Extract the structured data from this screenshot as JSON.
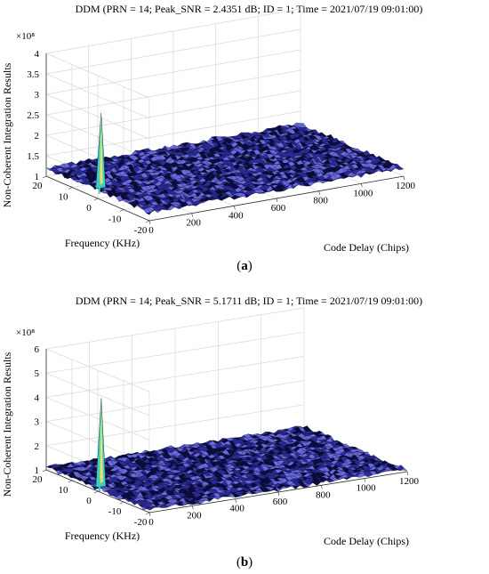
{
  "chart_data": [
    {
      "panel_label_text": "(a)",
      "panel_letter": "a",
      "type": "surface-3d",
      "title": "DDM (PRN = 14; Peak_SNR = 2.4351 dB; ID = 1; Time = 2021/07/19 09:01:00)",
      "xlabel": "Code Delay (Chips)",
      "ylabel": "Frequency (KHz)",
      "zlabel": "Non-Coherent Integration Results",
      "z_exponent": "×10⁸",
      "x_ticks": [
        "0",
        "200",
        "400",
        "600",
        "800",
        "1000",
        "1200"
      ],
      "y_ticks": [
        "20",
        "10",
        "0",
        "-10",
        "-20"
      ],
      "z_ticks": [
        "1",
        "1.5",
        "2",
        "2.5",
        "3",
        "3.5",
        "4"
      ],
      "xlim": [
        0,
        1200
      ],
      "ylim": [
        -20,
        20
      ],
      "zlim": [
        1,
        4
      ],
      "z_scale": 100000000,
      "noise_floor": 1.2,
      "peak": {
        "code_delay": 40,
        "frequency": 2,
        "value": 3.0
      },
      "grid": true
    },
    {
      "panel_label_text": "(b)",
      "panel_letter": "b",
      "type": "surface-3d",
      "title": "DDM (PRN = 14; Peak_SNR = 5.1711 dB; ID = 1; Time = 2021/07/19 09:01:00)",
      "xlabel": "Code Delay (Chips)",
      "ylabel": "Frequency (KHz)",
      "zlabel": "Non-Coherent Integration Results",
      "z_exponent": "×10⁸",
      "x_ticks": [
        "0",
        "200",
        "400",
        "600",
        "800",
        "1000",
        "1200"
      ],
      "y_ticks": [
        "20",
        "10",
        "0",
        "-10",
        "-20"
      ],
      "z_ticks": [
        "1",
        "2",
        "3",
        "4",
        "5",
        "6"
      ],
      "xlim": [
        0,
        1200
      ],
      "ylim": [
        -20,
        20
      ],
      "zlim": [
        1,
        6
      ],
      "z_scale": 100000000,
      "noise_floor": 1.1,
      "peak": {
        "code_delay": 40,
        "frequency": 2,
        "value": 4.7
      },
      "grid": true
    }
  ],
  "colors": {
    "surface_dark": "#0a0a3c",
    "surface_mid": "#2a2a9a",
    "surface_light": "#6a6ae0",
    "peak_cyan": "#40d0c0",
    "peak_yellow": "#f0e060",
    "grid": "#d8d8d8",
    "axis": "#333333"
  }
}
